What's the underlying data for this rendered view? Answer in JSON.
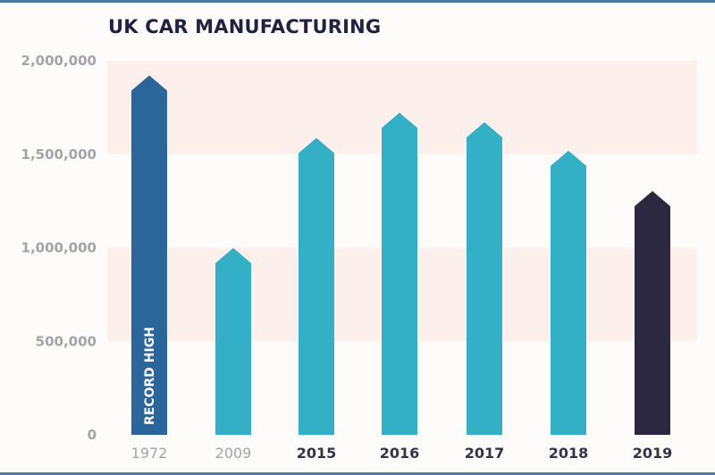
{
  "chart_data": {
    "type": "bar",
    "title": "UK CAR MANUFACTURING",
    "xlabel": "",
    "ylabel": "",
    "categories": [
      "1972",
      "2009",
      "2015",
      "2016",
      "2017",
      "2018",
      "2019"
    ],
    "values": [
      1921000,
      999000,
      1587000,
      1722000,
      1671000,
      1519000,
      1303000
    ],
    "ylim": [
      0,
      2000000
    ],
    "yticks": [
      0,
      500000,
      1000000,
      1500000,
      2000000
    ],
    "ytick_labels": [
      "0",
      "500,000",
      "1,000,000",
      "1,500,000",
      "2,000,000"
    ],
    "bold_categories": [
      "2015",
      "2016",
      "2017",
      "2018",
      "2019"
    ],
    "bar_colors": [
      "#2a6699",
      "#33b0c6",
      "#33b0c6",
      "#33b0c6",
      "#33b0c6",
      "#33b0c6",
      "#2b2840"
    ],
    "band_color": "#fdf0ec",
    "annotations": [
      {
        "category": "1972",
        "text": "RECORD HIGH"
      }
    ],
    "grid": false,
    "legend": "none"
  }
}
